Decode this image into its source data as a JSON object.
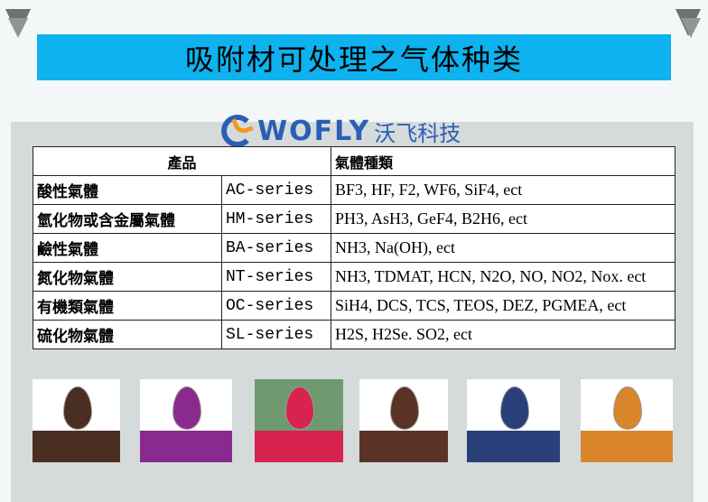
{
  "title": "吸附材可处理之气体种类",
  "logo": {
    "en": "WOFLY",
    "cn": "沃飞科技"
  },
  "table": {
    "headers": [
      "產品",
      "氣體種類"
    ],
    "rows": [
      {
        "name": "酸性氣體",
        "series": "AC-series",
        "gases": "BF3, HF, F2, WF6, SiF4, ect"
      },
      {
        "name": "氫化物或含金屬氣體",
        "series": "HM-series",
        "gases": "PH3, AsH3, GeF4, B2H6, ect"
      },
      {
        "name": "鹼性氣體",
        "series": "BA-series",
        "gases": "NH3, Na(OH), ect"
      },
      {
        "name": "氮化物氣體",
        "series": "NT-series",
        "gases": "NH3, TDMAT, HCN, N2O, NO, NO2, Nox. ect"
      },
      {
        "name": "有機類氣體",
        "series": "OC-series",
        "gases": "SiH4, DCS, TCS, TEOS, DEZ, PGMEA, ect"
      },
      {
        "name": "硫化物氣體",
        "series": "SL-series",
        "gases": "H2S, H2Se. SO2, ect"
      }
    ]
  },
  "photos": [
    {
      "color": "#4a2e22",
      "bg": "#ffffff"
    },
    {
      "color": "#8a2a8f",
      "bg": "#ffffff"
    },
    {
      "color": "#d8234f",
      "bg": "#6f9a70"
    },
    {
      "color": "#5a3326",
      "bg": "#ffffff"
    },
    {
      "color": "#2a3f7a",
      "bg": "#ffffff"
    },
    {
      "color": "#d9862a",
      "bg": "#ffffff"
    }
  ],
  "colors": {
    "title_bar": "#0db2ef",
    "panel": "#d5dbdb",
    "logo": "#2b5fb5",
    "logo_accent": "#f39a1e"
  }
}
